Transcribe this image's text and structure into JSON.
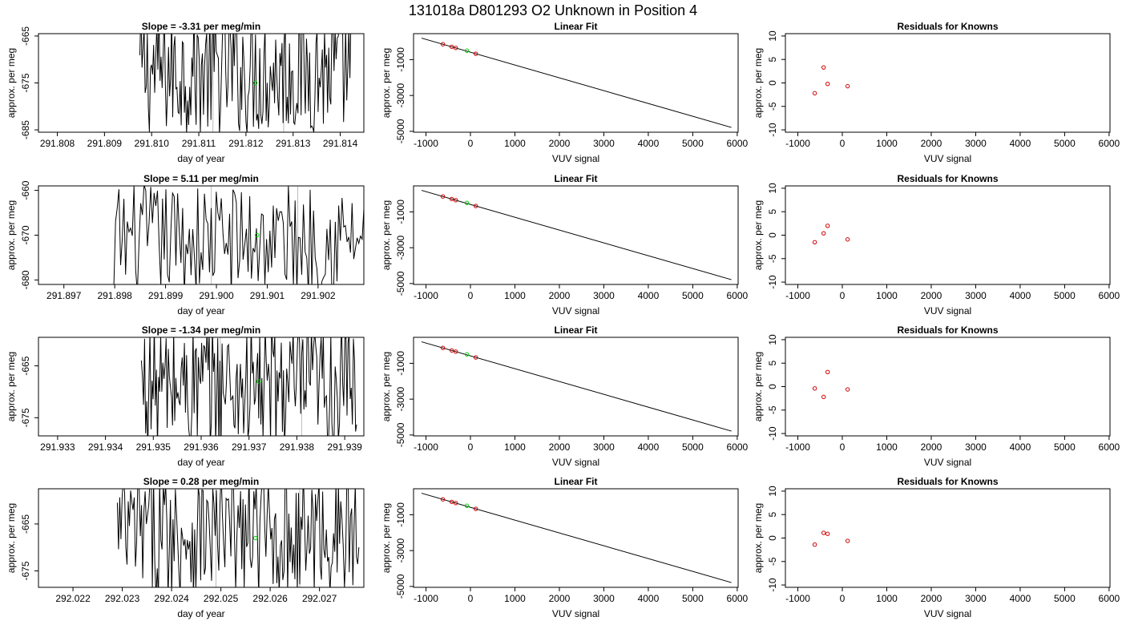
{
  "figure_title": "131018a      D801293   O2 Unknown in Position  4",
  "colors": {
    "trace": "#000000",
    "known_points": "#cc0000",
    "unknown_point": "#00cc00",
    "vertical_markers": "#bbbbbb"
  },
  "chart_data": [
    {
      "type": "line",
      "row": 1,
      "title": "Slope =  -3.31  per meg/min",
      "xlabel": "day of year",
      "ylabel": "approx. per meg",
      "xlim": [
        291.8076,
        291.8145
      ],
      "ylim": [
        -685.5,
        -664.5
      ],
      "xticks": [
        "291.808",
        "291.809",
        "291.810",
        "291.811",
        "291.812",
        "291.813",
        "291.814"
      ],
      "yticks": [
        "-665",
        "-675",
        "-685"
      ],
      "ytick_values": [
        -665,
        -675,
        -685
      ],
      "trace_start": 291.80975,
      "trace_end": 291.81425,
      "trace_mean": -672.5,
      "trace_amp": 12,
      "trace_points": 200,
      "markers_x": [
        291.8113,
        291.8128
      ],
      "unknown_point": {
        "x": 291.8122,
        "y": -675
      }
    },
    {
      "type": "line",
      "row": 2,
      "title": "Slope =  5.11  per meg/min",
      "xlabel": "day of year",
      "ylabel": "approx. per meg",
      "xlim": [
        291.8965,
        291.9029
      ],
      "ylim": [
        -681,
        -659
      ],
      "xticks": [
        "291.897",
        "291.898",
        "291.899",
        "291.900",
        "291.901",
        "291.902"
      ],
      "yticks": [
        "-660",
        "-670",
        "-680"
      ],
      "ytick_values": [
        -660,
        -670,
        -680
      ],
      "trace_start": 291.8963,
      "trace_end": 291.9029,
      "trace_mean": -671,
      "trace_amp": 11,
      "trace_points": 200,
      "flat_until": 291.898,
      "flat_value": -681,
      "markers_x": [
        291.8999,
        291.9016
      ],
      "unknown_point": {
        "x": 291.9008,
        "y": -670
      }
    },
    {
      "type": "line",
      "row": 3,
      "title": "Slope =  -1.34  per meg/min",
      "xlabel": "day of year",
      "ylabel": "approx. per meg",
      "xlim": [
        291.9326,
        291.9394
      ],
      "ylim": [
        -678.5,
        -659.5
      ],
      "xticks": [
        "291.933",
        "291.934",
        "291.935",
        "291.936",
        "291.937",
        "291.938",
        "291.939"
      ],
      "yticks": [
        "-665",
        "-675"
      ],
      "ytick_values": [
        -665,
        -675
      ],
      "trace_start": 291.93475,
      "trace_end": 291.93925,
      "trace_mean": -669,
      "trace_amp": 11,
      "trace_points": 200,
      "markers_x": [
        291.9364,
        291.9381
      ],
      "unknown_point": {
        "x": 291.9372,
        "y": -668
      }
    },
    {
      "type": "line",
      "row": 4,
      "title": "Slope =  0.28  per meg/min",
      "xlabel": "day of year",
      "ylabel": "approx. per meg",
      "xlim": [
        292.0213,
        292.0279
      ],
      "ylim": [
        -678.5,
        -657.5
      ],
      "xticks": [
        "292.022",
        "292.023",
        "292.024",
        "292.025",
        "292.026",
        "292.027"
      ],
      "yticks": [
        "-665",
        "-675"
      ],
      "ytick_values": [
        -665,
        -675
      ],
      "trace_start": 292.0229,
      "trace_end": 292.0278,
      "trace_mean": -667,
      "trace_amp": 12,
      "trace_points": 200,
      "markers_x": [
        292.0249,
        292.0266
      ],
      "unknown_point": {
        "x": 292.0257,
        "y": -668
      }
    },
    {
      "type": "scatter",
      "row": 1,
      "title": "Linear Fit",
      "xlabel": "VUV signal",
      "ylabel": "approx. per meg",
      "xlim": [
        -1280,
        6020
      ],
      "ylim": [
        -5050,
        450
      ],
      "xticks": [
        "-1000",
        "0",
        "1000",
        "2000",
        "3000",
        "4000",
        "5000",
        "6000"
      ],
      "xtick_values": [
        -1000,
        0,
        1000,
        2000,
        3000,
        4000,
        5000,
        6000
      ],
      "yticks": [
        "-1000",
        "-3000",
        "-5000"
      ],
      "ytick_values": [
        -1000,
        -3000,
        -5000
      ],
      "fit_line": {
        "x": [
          -1100,
          5870
        ],
        "y": [
          202,
          -4785
        ]
      },
      "known_points": {
        "x": [
          -620,
          -420,
          -330,
          120
        ],
        "y": [
          -140,
          -283,
          -348,
          -670
        ]
      },
      "unknown_point": {
        "x": -80,
        "y": -500
      }
    },
    {
      "type": "scatter",
      "row": 2,
      "title": "Linear Fit",
      "xlabel": "VUV signal",
      "ylabel": "approx. per meg",
      "xlim": [
        -1280,
        6020
      ],
      "ylim": [
        -5050,
        450
      ],
      "xticks": [
        "-1000",
        "0",
        "1000",
        "2000",
        "3000",
        "4000",
        "5000",
        "6000"
      ],
      "xtick_values": [
        -1000,
        0,
        1000,
        2000,
        3000,
        4000,
        5000,
        6000
      ],
      "yticks": [
        "-1000",
        "-3000",
        "-5000"
      ],
      "ytick_values": [
        -1000,
        -3000,
        -5000
      ],
      "fit_line": {
        "x": [
          -1100,
          5870
        ],
        "y": [
          202,
          -4785
        ]
      },
      "known_points": {
        "x": [
          -620,
          -420,
          -330,
          120
        ],
        "y": [
          -140,
          -283,
          -348,
          -670
        ]
      },
      "unknown_point": {
        "x": -80,
        "y": -500
      }
    },
    {
      "type": "scatter",
      "row": 3,
      "title": "Linear Fit",
      "xlabel": "VUV signal",
      "ylabel": "approx. per meg",
      "xlim": [
        -1280,
        6020
      ],
      "ylim": [
        -5050,
        450
      ],
      "xticks": [
        "-1000",
        "0",
        "1000",
        "2000",
        "3000",
        "4000",
        "5000",
        "6000"
      ],
      "xtick_values": [
        -1000,
        0,
        1000,
        2000,
        3000,
        4000,
        5000,
        6000
      ],
      "yticks": [
        "-1000",
        "-3000",
        "-5000"
      ],
      "ytick_values": [
        -1000,
        -3000,
        -5000
      ],
      "fit_line": {
        "x": [
          -1100,
          5870
        ],
        "y": [
          202,
          -4785
        ]
      },
      "known_points": {
        "x": [
          -620,
          -420,
          -330,
          120
        ],
        "y": [
          -140,
          -283,
          -348,
          -670
        ]
      },
      "unknown_point": {
        "x": -80,
        "y": -500
      }
    },
    {
      "type": "scatter",
      "row": 4,
      "title": "Linear Fit",
      "xlabel": "VUV signal",
      "ylabel": "approx. per meg",
      "xlim": [
        -1280,
        6020
      ],
      "ylim": [
        -5050,
        450
      ],
      "xticks": [
        "-1000",
        "0",
        "1000",
        "2000",
        "3000",
        "4000",
        "5000",
        "6000"
      ],
      "xtick_values": [
        -1000,
        0,
        1000,
        2000,
        3000,
        4000,
        5000,
        6000
      ],
      "yticks": [
        "-1000",
        "-3000",
        "-5000"
      ],
      "ytick_values": [
        -1000,
        -3000,
        -5000
      ],
      "fit_line": {
        "x": [
          -1100,
          5870
        ],
        "y": [
          202,
          -4785
        ]
      },
      "known_points": {
        "x": [
          -620,
          -420,
          -330,
          120
        ],
        "y": [
          -140,
          -283,
          -348,
          -670
        ]
      },
      "unknown_point": {
        "x": -80,
        "y": -500
      }
    },
    {
      "type": "scatter",
      "row": 1,
      "title": "Residuals for Knowns",
      "xlabel": "VUV signal",
      "ylabel": "approx. per meg",
      "xlim": [
        -1280,
        6020
      ],
      "ylim": [
        -10.5,
        10.5
      ],
      "xticks": [
        "-1000",
        "0",
        "1000",
        "2000",
        "3000",
        "4000",
        "5000",
        "6000"
      ],
      "xtick_values": [
        -1000,
        0,
        1000,
        2000,
        3000,
        4000,
        5000,
        6000
      ],
      "yticks": [
        "-10",
        "-5",
        "0",
        "5",
        "10"
      ],
      "ytick_values": [
        -10,
        -5,
        0,
        5,
        10
      ],
      "known_points": {
        "x": [
          -620,
          -420,
          -330,
          120
        ],
        "y": [
          -2.2,
          3.3,
          -0.2,
          -0.7
        ]
      }
    },
    {
      "type": "scatter",
      "row": 2,
      "title": "Residuals for Knowns",
      "xlabel": "VUV signal",
      "ylabel": "approx. per meg",
      "xlim": [
        -1280,
        6020
      ],
      "ylim": [
        -10.5,
        10.5
      ],
      "xticks": [
        "-1000",
        "0",
        "1000",
        "2000",
        "3000",
        "4000",
        "5000",
        "6000"
      ],
      "xtick_values": [
        -1000,
        0,
        1000,
        2000,
        3000,
        4000,
        5000,
        6000
      ],
      "yticks": [
        "-10",
        "-5",
        "0",
        "5",
        "10"
      ],
      "ytick_values": [
        -10,
        -5,
        0,
        5,
        10
      ],
      "known_points": {
        "x": [
          -620,
          -420,
          -330,
          120
        ],
        "y": [
          -1.5,
          0.4,
          2.0,
          -0.9
        ]
      }
    },
    {
      "type": "scatter",
      "row": 3,
      "title": "Residuals for Knowns",
      "xlabel": "VUV signal",
      "ylabel": "approx. per meg",
      "xlim": [
        -1280,
        6020
      ],
      "ylim": [
        -10.5,
        10.5
      ],
      "xticks": [
        "-1000",
        "0",
        "1000",
        "2000",
        "3000",
        "4000",
        "5000",
        "6000"
      ],
      "xtick_values": [
        -1000,
        0,
        1000,
        2000,
        3000,
        4000,
        5000,
        6000
      ],
      "yticks": [
        "-10",
        "-5",
        "0",
        "5",
        "10"
      ],
      "ytick_values": [
        -10,
        -5,
        0,
        5,
        10
      ],
      "known_points": {
        "x": [
          -620,
          -420,
          -330,
          120
        ],
        "y": [
          -0.4,
          -2.2,
          3.1,
          -0.6
        ]
      }
    },
    {
      "type": "scatter",
      "row": 4,
      "title": "Residuals for Knowns",
      "xlabel": "VUV signal",
      "ylabel": "approx. per meg",
      "xlim": [
        -1280,
        6020
      ],
      "ylim": [
        -10.5,
        10.5
      ],
      "xticks": [
        "-1000",
        "0",
        "1000",
        "2000",
        "3000",
        "4000",
        "5000",
        "6000"
      ],
      "xtick_values": [
        -1000,
        0,
        1000,
        2000,
        3000,
        4000,
        5000,
        6000
      ],
      "yticks": [
        "-10",
        "-5",
        "0",
        "5",
        "10"
      ],
      "ytick_values": [
        -10,
        -5,
        0,
        5,
        10
      ],
      "known_points": {
        "x": [
          -620,
          -420,
          -330,
          120
        ],
        "y": [
          -1.4,
          1.1,
          0.9,
          -0.6
        ]
      }
    }
  ]
}
